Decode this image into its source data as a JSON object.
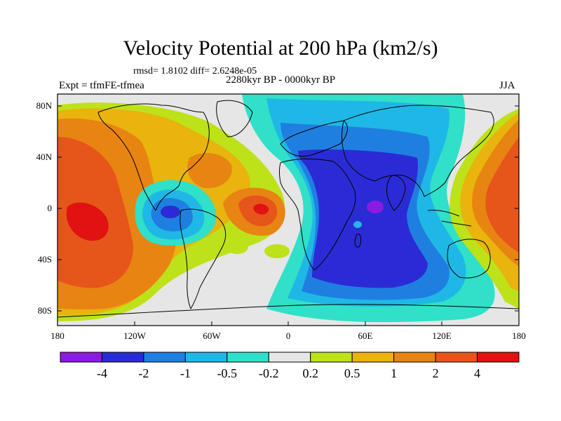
{
  "header": {
    "title": "Velocity Potential at 200 hPa (km2/s)",
    "stats": "rmsd= 1.8102 diff= 2.6248e-05",
    "experiment": "Expt = tfmFE-tfmea",
    "period": "2280kyr BP - 0000kyr BP",
    "season": "JJA"
  },
  "axes": {
    "lat_labels": [
      "80N",
      "40N",
      "0",
      "40S",
      "80S"
    ],
    "lon_labels": [
      "180",
      "120W",
      "60W",
      "0",
      "60E",
      "120E",
      "180"
    ]
  },
  "colorbar": {
    "labels": [
      "-4",
      "-2",
      "-1",
      "-0.5",
      "-0.2",
      "0.2",
      "0.5",
      "1",
      "2",
      "4"
    ],
    "colors": [
      "#8a1be0",
      "#2b2bd6",
      "#1f7fe0",
      "#1fb8e6",
      "#30e0c8",
      "#e6e6e6",
      "#bde21a",
      "#e8b40d",
      "#e88412",
      "#e6551a",
      "#e01212"
    ]
  },
  "map": {
    "projection": "cylindrical-equidistant",
    "background_color": "#e6e6e6",
    "land_outline_color": "#000000",
    "lon_range": [
      -180,
      180
    ],
    "lat_range": [
      -90,
      90
    ]
  }
}
